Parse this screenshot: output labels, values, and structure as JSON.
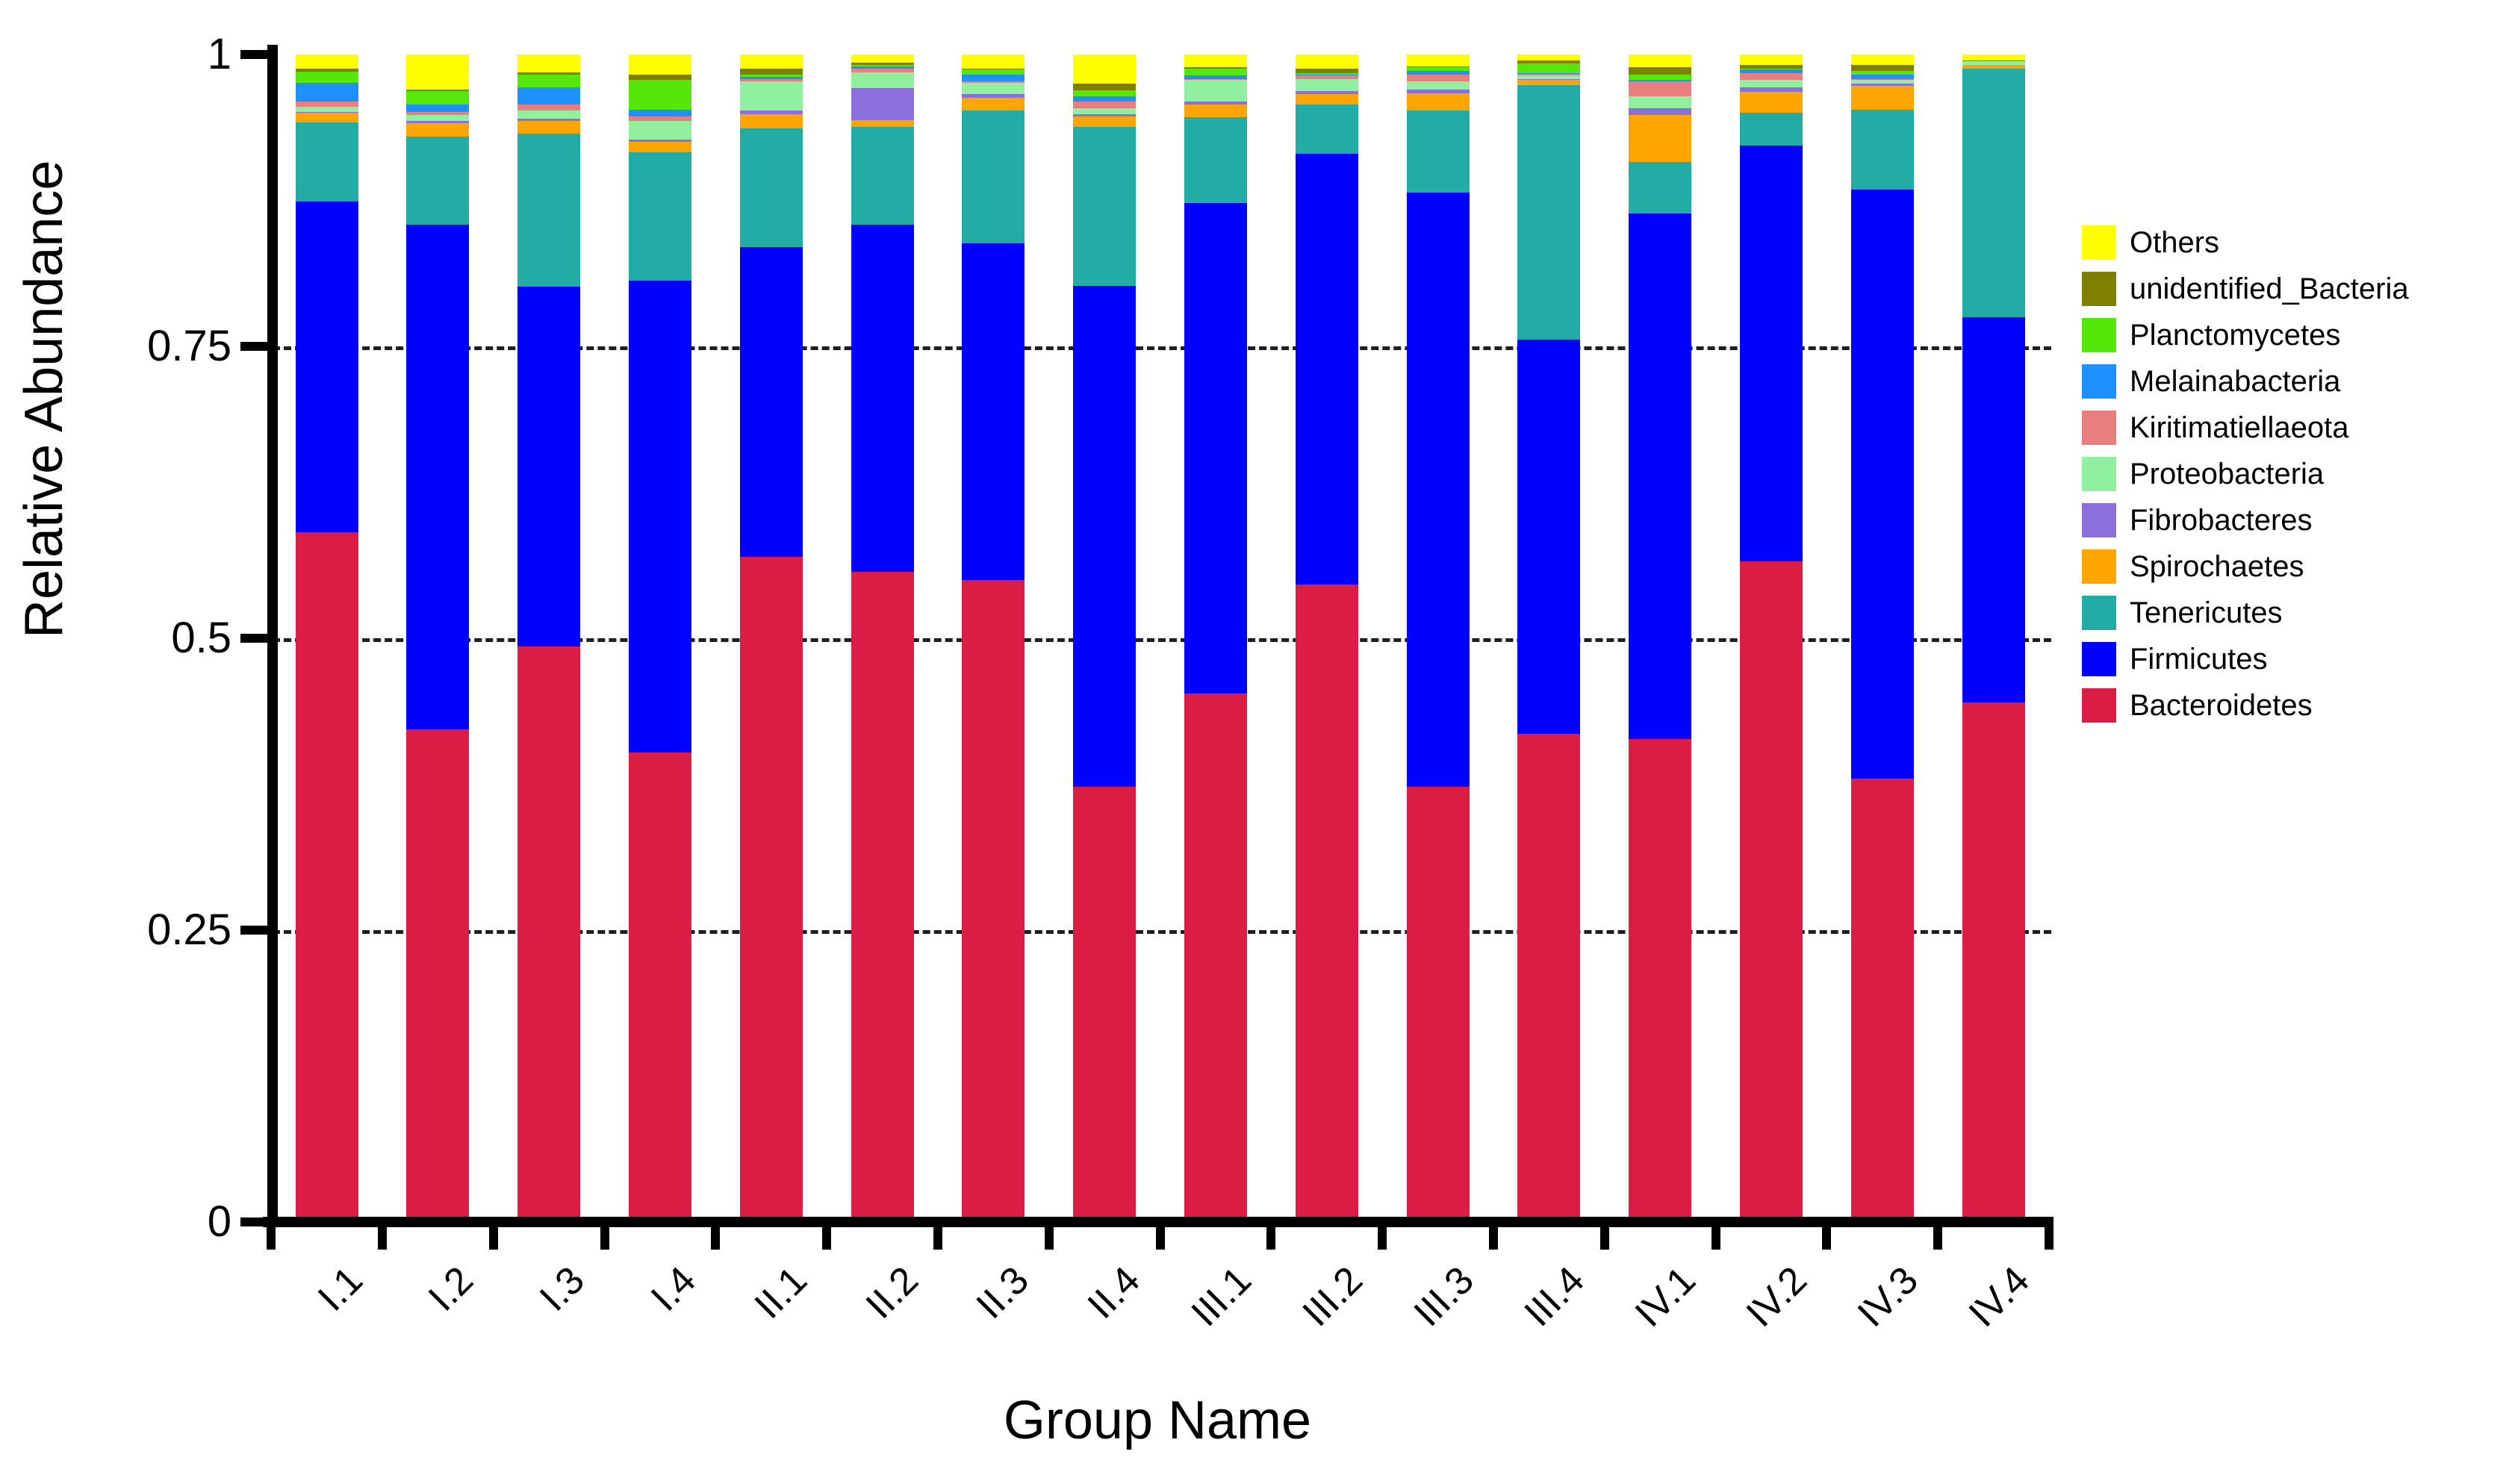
{
  "chart": {
    "xlabel": "Group Name",
    "ylabel": "Relative Abundance"
  },
  "chart_data": {
    "type": "bar",
    "subtype": "stacked-vertical",
    "title": "",
    "xlabel": "Group Name",
    "ylabel": "Relative Abundance",
    "ylim": [
      0,
      1
    ],
    "grid": "dashed horizontal lines at 0.25, 0.5, 0.75",
    "legend_position": "right",
    "y_ticks": [
      {
        "label": "1",
        "value": 1
      },
      {
        "label": "0.75",
        "value": 0.75
      },
      {
        "label": "0.5",
        "value": 0.5
      },
      {
        "label": "0.25",
        "value": 0.25
      },
      {
        "label": "0",
        "value": 0
      }
    ],
    "categories": [
      "I.1",
      "I.2",
      "I.3",
      "I.4",
      "II.1",
      "II.2",
      "II.3",
      "II.4",
      "III.1",
      "III.2",
      "III.3",
      "III.4",
      "IV.1",
      "IV.2",
      "IV.3",
      "IV.4"
    ],
    "legend_order_top_to_bottom": [
      "Others",
      "unidentified_Bacteria",
      "Planctomycetes",
      "Melainabacteria",
      "Kiritimatiellaeota",
      "Proteobacteria",
      "Fibrobacteres",
      "Spirochaetes",
      "Tenericutes",
      "Firmicutes",
      "Bacteroidetes"
    ],
    "series": [
      {
        "name": "Bacteroidetes",
        "color": "#DB1C45",
        "values": [
          0.591,
          0.422,
          0.493,
          0.402,
          0.57,
          0.557,
          0.55,
          0.373,
          0.453,
          0.546,
          0.373,
          0.418,
          0.414,
          0.566,
          0.38,
          0.445
        ]
      },
      {
        "name": "Firmicutes",
        "color": "#0000FE",
        "values": [
          0.283,
          0.432,
          0.308,
          0.404,
          0.265,
          0.297,
          0.288,
          0.429,
          0.42,
          0.369,
          0.509,
          0.338,
          0.45,
          0.356,
          0.504,
          0.33
        ]
      },
      {
        "name": "Tenericutes",
        "color": "#23ACA6",
        "values": [
          0.068,
          0.076,
          0.131,
          0.11,
          0.102,
          0.084,
          0.114,
          0.136,
          0.073,
          0.042,
          0.07,
          0.218,
          0.044,
          0.028,
          0.069,
          0.213
        ]
      },
      {
        "name": "Spirochaetes",
        "color": "#FFA500",
        "values": [
          0.008,
          0.011,
          0.011,
          0.009,
          0.012,
          0.006,
          0.011,
          0.009,
          0.011,
          0.009,
          0.015,
          0.004,
          0.04,
          0.018,
          0.02,
          0.003
        ]
      },
      {
        "name": "Fibrobacteres",
        "color": "#8C6FDB",
        "values": [
          0.001,
          0.002,
          0.002,
          0.002,
          0.003,
          0.027,
          0.003,
          0.002,
          0.003,
          0.003,
          0.003,
          0.001,
          0.006,
          0.004,
          0.002,
          0.0
        ]
      },
      {
        "name": "Proteobacteria",
        "color": "#90F0A0",
        "values": [
          0.004,
          0.005,
          0.007,
          0.016,
          0.025,
          0.014,
          0.01,
          0.005,
          0.018,
          0.01,
          0.007,
          0.003,
          0.01,
          0.006,
          0.003,
          0.003
        ]
      },
      {
        "name": "Kiritimatiellaeota",
        "color": "#E97E7E",
        "values": [
          0.005,
          0.003,
          0.005,
          0.004,
          0.002,
          0.003,
          0.001,
          0.006,
          0.001,
          0.003,
          0.006,
          0.001,
          0.013,
          0.006,
          0.001,
          0.0
        ]
      },
      {
        "name": "Melainabacteria",
        "color": "#1E90FF",
        "values": [
          0.016,
          0.006,
          0.015,
          0.006,
          0.002,
          0.002,
          0.006,
          0.004,
          0.003,
          0.001,
          0.003,
          0.001,
          0.001,
          0.003,
          0.004,
          0.0
        ]
      },
      {
        "name": "Planctomycetes",
        "color": "#55E60A",
        "values": [
          0.009,
          0.012,
          0.011,
          0.025,
          0.002,
          0.001,
          0.004,
          0.005,
          0.006,
          0.001,
          0.003,
          0.008,
          0.005,
          0.001,
          0.003,
          0.0
        ]
      },
      {
        "name": "unidentified_Bacteria",
        "color": "#7F7F00",
        "values": [
          0.003,
          0.001,
          0.002,
          0.005,
          0.005,
          0.002,
          0.001,
          0.006,
          0.001,
          0.004,
          0.001,
          0.003,
          0.006,
          0.003,
          0.005,
          0.001
        ]
      },
      {
        "name": "Others",
        "color": "#FFFF00",
        "values": [
          0.012,
          0.03,
          0.015,
          0.017,
          0.012,
          0.007,
          0.012,
          0.025,
          0.011,
          0.012,
          0.01,
          0.005,
          0.011,
          0.009,
          0.009,
          0.005
        ]
      }
    ],
    "axis_color": "#000000",
    "grid_color": "#1F1F1F"
  }
}
